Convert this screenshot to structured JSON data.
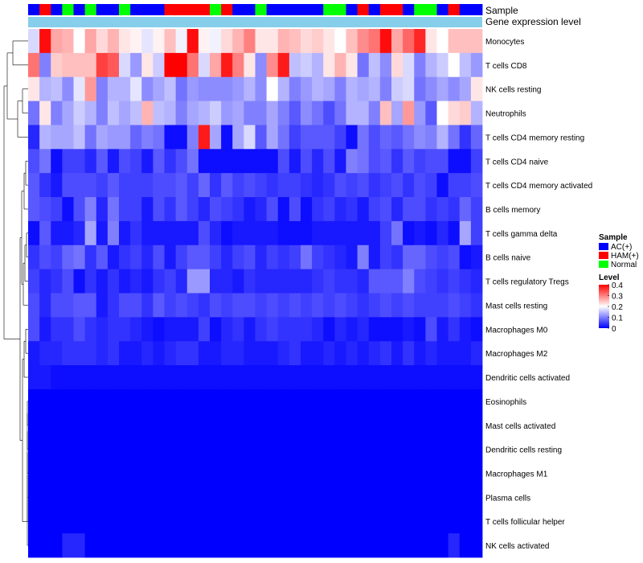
{
  "chart_data": {
    "type": "heatmap",
    "annotation_rows": [
      "Sample",
      "Gene expression level"
    ],
    "row_labels": [
      "Monocytes",
      "T cells CD8",
      "NK cells resting",
      "Neutrophils",
      "T cells CD4 memory resting",
      "T cells CD4 naive",
      "T cells CD4 memory activated",
      "B cells memory",
      "T cells gamma delta",
      "B cells naive",
      "T cells regulatory  Tregs",
      "Mast cells resting",
      "Macrophages M0",
      "Macrophages M2",
      "Dendritic cells activated",
      "Eosinophils",
      "Mast cells activated",
      "Dendritic cells resting",
      "Macrophages M1",
      "Plasma cells",
      "T cells follicular helper",
      "NK cells activated"
    ],
    "sample_groups": [
      "AC",
      "HAM",
      "AC",
      "NOR",
      "AC",
      "NOR",
      "AC",
      "AC",
      "NOR",
      "AC",
      "AC",
      "AC",
      "HAM",
      "HAM",
      "HAM",
      "HAM",
      "NOR",
      "HAM",
      "AC",
      "AC",
      "NOR",
      "AC",
      "AC",
      "AC",
      "AC",
      "AC",
      "NOR",
      "NOR",
      "AC",
      "HAM",
      "AC",
      "HAM",
      "HAM",
      "AC",
      "NOR",
      "NOR",
      "AC",
      "HAM",
      "AC",
      "AC"
    ],
    "values": [
      [
        0.17,
        0.39,
        0.27,
        0.26,
        0.2,
        0.27,
        0.23,
        0.26,
        0.22,
        0.21,
        0.18,
        0.21,
        0.25,
        0.19,
        0.39,
        0.21,
        0.19,
        0.23,
        0.26,
        0.3,
        0.22,
        0.22,
        0.26,
        0.25,
        0.23,
        0.24,
        0.22,
        0.2,
        0.25,
        0.29,
        0.31,
        0.39,
        0.27,
        0.32,
        0.37,
        0.22,
        0.2,
        0.25,
        0.25,
        0.25
      ],
      [
        0.31,
        0.1,
        0.24,
        0.25,
        0.25,
        0.25,
        0.35,
        0.33,
        0.17,
        0.12,
        0.22,
        0.16,
        0.4,
        0.4,
        0.31,
        0.17,
        0.27,
        0.38,
        0.3,
        0.22,
        0.11,
        0.29,
        0.38,
        0.15,
        0.16,
        0.14,
        0.22,
        0.26,
        0.22,
        0.09,
        0.15,
        0.11,
        0.23,
        0.17,
        0.1,
        0.14,
        0.16,
        0.2,
        0.15,
        0.12
      ],
      [
        0.22,
        0.14,
        0.15,
        0.11,
        0.18,
        0.28,
        0.1,
        0.14,
        0.14,
        0.18,
        0.11,
        0.13,
        0.15,
        0.09,
        0.12,
        0.11,
        0.11,
        0.11,
        0.12,
        0.14,
        0.11,
        0.2,
        0.14,
        0.1,
        0.12,
        0.14,
        0.13,
        0.1,
        0.14,
        0.13,
        0.14,
        0.1,
        0.16,
        0.17,
        0.09,
        0.11,
        0.13,
        0.11,
        0.13,
        0.22
      ],
      [
        0.09,
        0.22,
        0.1,
        0.13,
        0.16,
        0.14,
        0.1,
        0.15,
        0.13,
        0.15,
        0.26,
        0.15,
        0.14,
        0.1,
        0.13,
        0.14,
        0.16,
        0.12,
        0.13,
        0.1,
        0.1,
        0.13,
        0.1,
        0.07,
        0.11,
        0.09,
        0.06,
        0.09,
        0.14,
        0.14,
        0.1,
        0.25,
        0.13,
        0.28,
        0.12,
        0.07,
        0.2,
        0.23,
        0.24,
        0.14
      ],
      [
        0.03,
        0.14,
        0.13,
        0.13,
        0.15,
        0.09,
        0.13,
        0.12,
        0.12,
        0.08,
        0.1,
        0.09,
        0.01,
        0.01,
        0.1,
        0.38,
        0.13,
        0.01,
        0.13,
        0.17,
        0.07,
        0.13,
        0.09,
        0.05,
        0.07,
        0.07,
        0.07,
        0.05,
        0.01,
        0.09,
        0.06,
        0.08,
        0.07,
        0.09,
        0.11,
        0.1,
        0.14,
        0.09,
        0.04,
        0.08
      ],
      [
        0.06,
        0.09,
        0.01,
        0.05,
        0.05,
        0.03,
        0.07,
        0.02,
        0.06,
        0.05,
        0.02,
        0.07,
        0.04,
        0.06,
        0.09,
        0.01,
        0.01,
        0.01,
        0.01,
        0.01,
        0.01,
        0.01,
        0.06,
        0.02,
        0.06,
        0.03,
        0.06,
        0.02,
        0.1,
        0.09,
        0.06,
        0.07,
        0.04,
        0.07,
        0.05,
        0.06,
        0.06,
        0.01,
        0.01,
        0.05
      ],
      [
        0.07,
        0.04,
        0.02,
        0.06,
        0.06,
        0.06,
        0.05,
        0.07,
        0.05,
        0.05,
        0.05,
        0.06,
        0.06,
        0.07,
        0.05,
        0.08,
        0.04,
        0.07,
        0.05,
        0.06,
        0.05,
        0.04,
        0.05,
        0.05,
        0.04,
        0.03,
        0.04,
        0.06,
        0.05,
        0.06,
        0.04,
        0.05,
        0.06,
        0.04,
        0.06,
        0.05,
        0.01,
        0.05,
        0.05,
        0.06
      ],
      [
        0.07,
        0.06,
        0.05,
        0.01,
        0.06,
        0.1,
        0.03,
        0.09,
        0.05,
        0.05,
        0.02,
        0.06,
        0.04,
        0.07,
        0.05,
        0.03,
        0.06,
        0.05,
        0.04,
        0.02,
        0.03,
        0.06,
        0.01,
        0.06,
        0.01,
        0.04,
        0.05,
        0.03,
        0.04,
        0.02,
        0.05,
        0.06,
        0.03,
        0.06,
        0.06,
        0.04,
        0.05,
        0.04,
        0.08,
        0.05
      ],
      [
        0.01,
        0.07,
        0.02,
        0.02,
        0.03,
        0.13,
        0.02,
        0.1,
        0.02,
        0.04,
        0.02,
        0.02,
        0.02,
        0.02,
        0.02,
        0.06,
        0.03,
        0.01,
        0.02,
        0.02,
        0.02,
        0.02,
        0.01,
        0.01,
        0.01,
        0.02,
        0.02,
        0.02,
        0.02,
        0.02,
        0.02,
        0.05,
        0.09,
        0.01,
        0.02,
        0.01,
        0.03,
        0.01,
        0.13,
        0.05
      ],
      [
        0.04,
        0.06,
        0.05,
        0.08,
        0.09,
        0.04,
        0.07,
        0.02,
        0.04,
        0.05,
        0.03,
        0.06,
        0.02,
        0.05,
        0.07,
        0.07,
        0.05,
        0.03,
        0.05,
        0.06,
        0.03,
        0.05,
        0.04,
        0.05,
        0.09,
        0.05,
        0.04,
        0.03,
        0.02,
        0.1,
        0.02,
        0.05,
        0.04,
        0.08,
        0.08,
        0.06,
        0.05,
        0.06,
        0.01,
        0.02
      ],
      [
        0.05,
        0.03,
        0.04,
        0.06,
        0.01,
        0.04,
        0.02,
        0.04,
        0.02,
        0.03,
        0.02,
        0.04,
        0.05,
        0.03,
        0.12,
        0.12,
        0.03,
        0.03,
        0.02,
        0.04,
        0.03,
        0.03,
        0.03,
        0.03,
        0.03,
        0.04,
        0.05,
        0.04,
        0.04,
        0.03,
        0.07,
        0.07,
        0.07,
        0.1,
        0.06,
        0.05,
        0.04,
        0.05,
        0.04,
        0.03
      ],
      [
        0.06,
        0.03,
        0.06,
        0.06,
        0.07,
        0.07,
        0.02,
        0.04,
        0.06,
        0.06,
        0.04,
        0.07,
        0.05,
        0.06,
        0.05,
        0.04,
        0.06,
        0.05,
        0.06,
        0.06,
        0.05,
        0.06,
        0.05,
        0.06,
        0.05,
        0.06,
        0.05,
        0.06,
        0.05,
        0.04,
        0.05,
        0.06,
        0.05,
        0.06,
        0.05,
        0.05,
        0.05,
        0.06,
        0.05,
        0.04
      ],
      [
        0.06,
        0.02,
        0.04,
        0.04,
        0.06,
        0.04,
        0.03,
        0.04,
        0.04,
        0.03,
        0.02,
        0.01,
        0.02,
        0.02,
        0.02,
        0.05,
        0.01,
        0.03,
        0.04,
        0.02,
        0.04,
        0.05,
        0.04,
        0.04,
        0.04,
        0.03,
        0.01,
        0.03,
        0.02,
        0.03,
        0.01,
        0.01,
        0.01,
        0.02,
        0.01,
        0.06,
        0.02,
        0.04,
        0.02,
        0.01
      ],
      [
        0.02,
        0.03,
        0.03,
        0.04,
        0.04,
        0.04,
        0.03,
        0.04,
        0.02,
        0.02,
        0.03,
        0.02,
        0.03,
        0.04,
        0.04,
        0.02,
        0.02,
        0.03,
        0.03,
        0.02,
        0.02,
        0.02,
        0.03,
        0.04,
        0.02,
        0.02,
        0.03,
        0.02,
        0.03,
        0.02,
        0.03,
        0.04,
        0.02,
        0.04,
        0.02,
        0.03,
        0.02,
        0.02,
        0.02,
        0.03
      ],
      [
        0.02,
        0.02,
        0.01,
        0.01,
        0.01,
        0.01,
        0.01,
        0.01,
        0.01,
        0.01,
        0.01,
        0.01,
        0.01,
        0.01,
        0.01,
        0.01,
        0.01,
        0.01,
        0.01,
        0.01,
        0.01,
        0.01,
        0.01,
        0.01,
        0.01,
        0.01,
        0.01,
        0.01,
        0.01,
        0.01,
        0.01,
        0.01,
        0.01,
        0.01,
        0.01,
        0.01,
        0.01,
        0.01,
        0.01,
        0.01
      ],
      [
        0,
        0,
        0,
        0,
        0,
        0,
        0,
        0,
        0,
        0,
        0,
        0,
        0,
        0,
        0,
        0,
        0,
        0,
        0,
        0,
        0,
        0,
        0,
        0,
        0,
        0,
        0,
        0,
        0,
        0,
        0,
        0,
        0,
        0,
        0,
        0,
        0,
        0,
        0,
        0
      ],
      [
        0,
        0,
        0,
        0,
        0,
        0,
        0,
        0,
        0,
        0,
        0,
        0,
        0,
        0,
        0,
        0,
        0,
        0,
        0,
        0,
        0,
        0,
        0,
        0,
        0,
        0,
        0,
        0,
        0,
        0,
        0,
        0,
        0,
        0,
        0,
        0,
        0,
        0,
        0,
        0
      ],
      [
        0,
        0,
        0,
        0,
        0,
        0,
        0,
        0,
        0,
        0,
        0,
        0,
        0,
        0,
        0,
        0,
        0,
        0,
        0,
        0,
        0,
        0,
        0,
        0,
        0,
        0,
        0,
        0,
        0,
        0,
        0,
        0,
        0,
        0,
        0,
        0,
        0,
        0,
        0,
        0
      ],
      [
        0,
        0,
        0,
        0,
        0,
        0,
        0,
        0,
        0,
        0,
        0,
        0,
        0,
        0,
        0,
        0,
        0,
        0,
        0,
        0,
        0,
        0,
        0,
        0,
        0,
        0,
        0,
        0,
        0,
        0,
        0,
        0,
        0,
        0,
        0,
        0,
        0,
        0,
        0,
        0
      ],
      [
        0,
        0,
        0,
        0,
        0,
        0,
        0,
        0,
        0,
        0,
        0,
        0,
        0,
        0,
        0,
        0,
        0,
        0,
        0,
        0,
        0,
        0,
        0,
        0,
        0,
        0,
        0,
        0,
        0,
        0,
        0,
        0,
        0,
        0,
        0,
        0,
        0,
        0,
        0,
        0
      ],
      [
        0,
        0,
        0,
        0,
        0,
        0,
        0,
        0,
        0,
        0,
        0,
        0,
        0,
        0,
        0,
        0,
        0,
        0,
        0,
        0,
        0,
        0,
        0,
        0,
        0,
        0,
        0,
        0,
        0,
        0,
        0,
        0,
        0,
        0,
        0,
        0,
        0,
        0,
        0,
        0
      ],
      [
        0,
        0,
        0,
        0.03,
        0.03,
        0,
        0,
        0,
        0,
        0,
        0,
        0,
        0,
        0,
        0,
        0,
        0,
        0,
        0,
        0,
        0,
        0,
        0,
        0,
        0,
        0,
        0,
        0,
        0,
        0,
        0,
        0,
        0,
        0,
        0,
        0,
        0,
        0.03,
        0,
        0
      ]
    ],
    "color_scale": {
      "min": 0,
      "mid": 0.2,
      "max": 0.4,
      "low": "#0000ff",
      "mid_color": "#ffffff",
      "high": "#ff0000"
    },
    "legend": {
      "sample_title": "Sample",
      "sample_entries": [
        {
          "key": "AC",
          "label": "AC(+)",
          "color": "#0000ff"
        },
        {
          "key": "HAM",
          "label": "HAM(+)",
          "color": "#ff0000"
        },
        {
          "key": "NOR",
          "label": "Normal",
          "color": "#00ff00"
        }
      ],
      "level_title": "Level",
      "level_ticks": [
        "0.4",
        "0.3",
        "0.2",
        "0.1",
        "0"
      ],
      "placement": "right"
    },
    "expression_bar_color": "#87ceeb",
    "row_dendrogram": true
  }
}
